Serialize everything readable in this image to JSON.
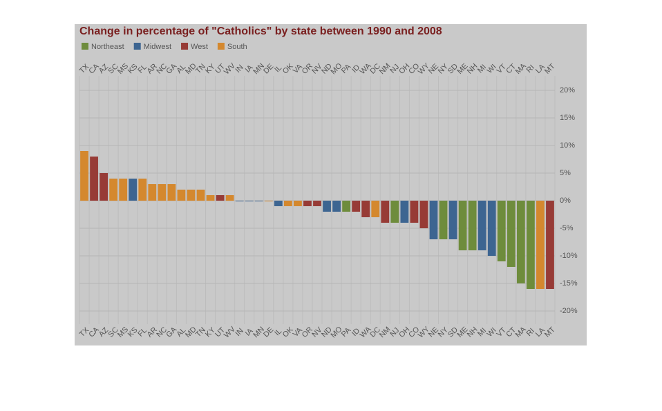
{
  "chart_data": {
    "type": "bar",
    "title": "Change in percentage of \"Catholics\" by state between 1990 and 2008",
    "categories": [
      "TX",
      "CA",
      "AZ",
      "SC",
      "MS",
      "KS",
      "FL",
      "AR",
      "NC",
      "GA",
      "AL",
      "MD",
      "TN",
      "KY",
      "UT",
      "WV",
      "IN",
      "IA",
      "MN",
      "DE",
      "IL",
      "OK",
      "VA",
      "OR",
      "NV",
      "ND",
      "MO",
      "PA",
      "ID",
      "WA",
      "DC",
      "NM",
      "NJ",
      "OH",
      "CO",
      "WY",
      "NE",
      "NY",
      "SD",
      "ME",
      "NH",
      "MI",
      "WI",
      "VT",
      "CT",
      "MA",
      "RI",
      "LA",
      "MT"
    ],
    "series": [
      {
        "name": "Northeast",
        "color": "#6e8c3c",
        "values": [
          null,
          null,
          null,
          null,
          null,
          null,
          null,
          null,
          null,
          null,
          null,
          null,
          null,
          null,
          null,
          null,
          null,
          null,
          null,
          null,
          null,
          null,
          null,
          null,
          null,
          null,
          null,
          -2,
          null,
          null,
          null,
          null,
          -4,
          null,
          null,
          null,
          null,
          -7,
          null,
          -9,
          -9,
          null,
          null,
          -11,
          -12,
          -15,
          -16,
          null,
          null
        ]
      },
      {
        "name": "Midwest",
        "color": "#3d6591",
        "values": [
          null,
          null,
          null,
          null,
          null,
          4,
          null,
          null,
          null,
          null,
          null,
          null,
          null,
          null,
          null,
          null,
          -0.1,
          -0.1,
          -0.1,
          null,
          -1,
          null,
          null,
          null,
          null,
          -2,
          -2,
          null,
          null,
          null,
          null,
          null,
          null,
          -4,
          null,
          null,
          -7,
          null,
          -7,
          null,
          null,
          -9,
          -10,
          null,
          null,
          null,
          null,
          null,
          null
        ]
      },
      {
        "name": "West",
        "color": "#973b36",
        "values": [
          null,
          8,
          5,
          null,
          null,
          null,
          null,
          null,
          null,
          null,
          null,
          null,
          null,
          null,
          1,
          null,
          null,
          null,
          null,
          null,
          null,
          null,
          null,
          -1,
          -1,
          null,
          null,
          null,
          -2,
          -3,
          null,
          -4,
          null,
          null,
          -4,
          -5,
          null,
          null,
          null,
          null,
          null,
          null,
          null,
          null,
          null,
          null,
          null,
          null,
          -16
        ]
      },
      {
        "name": "South",
        "color": "#d4882e",
        "values": [
          9,
          null,
          null,
          4,
          4,
          null,
          4,
          3,
          3,
          3,
          2,
          2,
          2,
          1,
          null,
          1,
          null,
          null,
          null,
          -0.1,
          null,
          -1,
          -1,
          null,
          null,
          null,
          null,
          null,
          null,
          null,
          -3,
          null,
          null,
          null,
          null,
          null,
          null,
          null,
          null,
          null,
          null,
          null,
          null,
          null,
          null,
          null,
          null,
          -16,
          null
        ]
      }
    ],
    "ylim": [
      -26,
      22
    ],
    "yticks": [
      {
        "value": 20,
        "label": "20%"
      },
      {
        "value": 15,
        "label": "15%"
      },
      {
        "value": 10,
        "label": "10%"
      },
      {
        "value": 5,
        "label": "5%"
      },
      {
        "value": 0,
        "label": "0%"
      },
      {
        "value": -5,
        "label": "-5%"
      },
      {
        "value": -10,
        "label": "-10%"
      },
      {
        "value": -15,
        "label": "-15%"
      },
      {
        "value": -20,
        "label": "-20%"
      }
    ],
    "grid": true
  }
}
